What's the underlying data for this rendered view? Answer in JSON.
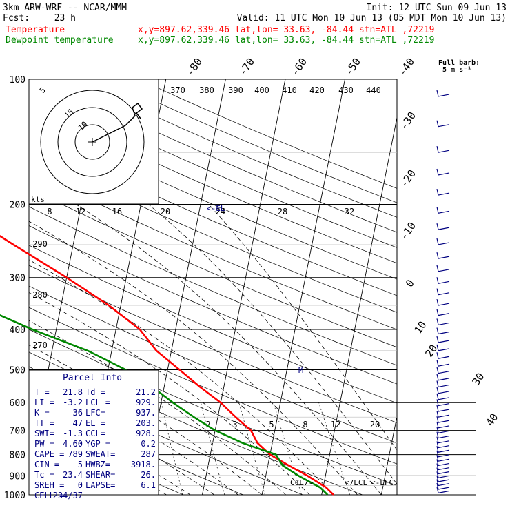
{
  "header": {
    "model": "3km ARW-WRF -- NCAR/MMM",
    "init": "Init: 12 UTC Sun 09 Jun 13",
    "fcst_label": "Fcst:",
    "fcst_value": "23 h",
    "valid": "Valid: 11 UTC Mon 10 Jun 13 (05 MDT Mon 10 Jun 13)",
    "legend": [
      {
        "name": "Temperature",
        "info": "x,y=897.62,339.46  lat,lon= 33.63, -84.44  stn=ATL ,72219",
        "color": "#ff0000"
      },
      {
        "name": "Dewpoint temperature",
        "info": "x,y=897.62,339.46  lat,lon= 33.63, -84.44  stn=ATL ,72219",
        "color": "#008800"
      }
    ]
  },
  "wind_key": {
    "line1": "Full barb:",
    "line2": "5 m s⁻¹"
  },
  "hodograph": {
    "rings": [
      "5",
      "10",
      "15"
    ],
    "speed_unit": "kts"
  },
  "chart_data": {
    "type": "line",
    "title": "",
    "yscale": "log",
    "ylim": [
      1000,
      100
    ],
    "yticks": [
      100,
      200,
      300,
      400,
      500,
      600,
      700,
      800,
      900,
      1000
    ],
    "isotherm_labels": [
      "-80",
      "-70",
      "-60",
      "-50",
      "-40",
      "-30",
      "-20",
      "-10",
      "0",
      "10",
      "20",
      "30",
      "40"
    ],
    "theta_labels": [
      "370",
      "380",
      "390",
      "400",
      "410",
      "420",
      "430",
      "440"
    ],
    "lower_theta_labels": [
      "290",
      "280",
      "270"
    ],
    "theta_e_labels": [
      "8",
      "12",
      "16",
      "20",
      "24",
      "28",
      "32"
    ],
    "mixing_ratio_labels": [
      "2",
      "3",
      "5",
      "8",
      "12",
      "20"
    ],
    "level_labels": [
      "CCL",
      "LCL",
      "LFC"
    ],
    "series": [
      {
        "name": "Temperature",
        "color": "#ff0000",
        "points": [
          [
            1000,
            22
          ],
          [
            960,
            20.5
          ],
          [
            900,
            17
          ],
          [
            850,
            13.5
          ],
          [
            800,
            10
          ],
          [
            750,
            7.5
          ],
          [
            700,
            6
          ],
          [
            650,
            3
          ],
          [
            600,
            0
          ],
          [
            550,
            -4
          ],
          [
            500,
            -8
          ],
          [
            450,
            -12.5
          ],
          [
            400,
            -16
          ],
          [
            350,
            -22
          ],
          [
            300,
            -30
          ],
          [
            250,
            -40
          ],
          [
            200,
            -52
          ],
          [
            175,
            -59
          ],
          [
            150,
            -64
          ],
          [
            130,
            -64
          ],
          [
            115,
            -63
          ],
          [
            100,
            -58
          ]
        ]
      },
      {
        "name": "Dewpoint temperature",
        "color": "#008800",
        "points": [
          [
            1000,
            21
          ],
          [
            960,
            19.5
          ],
          [
            900,
            15.5
          ],
          [
            850,
            12.5
          ],
          [
            800,
            11
          ],
          [
            750,
            5
          ],
          [
            700,
            0
          ],
          [
            650,
            -4
          ],
          [
            600,
            -8
          ],
          [
            550,
            -12
          ],
          [
            500,
            -17
          ],
          [
            450,
            -24
          ],
          [
            400,
            -34
          ],
          [
            350,
            -44
          ],
          [
            300,
            -47
          ],
          [
            270,
            -48
          ],
          [
            250,
            -53
          ],
          [
            200,
            -61
          ],
          [
            175,
            -68
          ],
          [
            150,
            -73
          ],
          [
            130,
            -75
          ],
          [
            115,
            -74
          ],
          [
            100,
            -69
          ]
        ]
      }
    ]
  },
  "parcel": {
    "title": "Parcel Info",
    "rows": [
      [
        "T  =",
        "21.8",
        "Td =",
        "21.2"
      ],
      [
        "LI =",
        "-3.2",
        "LCL =",
        "929."
      ],
      [
        "K  =",
        "36",
        "LFC=",
        "937."
      ],
      [
        "TT =",
        "47",
        "EL =",
        "203."
      ],
      [
        "SWI=",
        "-1.3",
        "CCL=",
        "928."
      ],
      [
        "PW =",
        "4.60",
        "YGP =",
        "0.2"
      ],
      [
        "CAPE =",
        "789",
        "SWEAT=",
        "287"
      ],
      [
        "CIN =",
        "-5",
        "HWBZ=",
        "3918."
      ],
      [
        "Tc =",
        "23.4",
        "SHEAR=",
        "26."
      ],
      [
        "SREH =",
        "0",
        "LAPSE=",
        "6.1"
      ],
      [
        "CELL =",
        "234/37",
        "",
        ""
      ]
    ]
  },
  "markers": {
    "mid_level": "M",
    "upper_level": "<-EL"
  }
}
